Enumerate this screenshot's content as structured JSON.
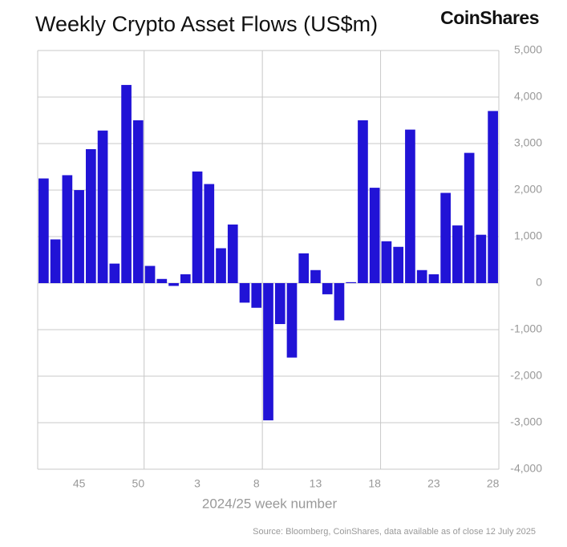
{
  "chart_data": {
    "type": "bar",
    "title": "Weekly Crypto Asset Flows (US$m)",
    "brand": "CoinShares",
    "x_label": "2024/25 week number",
    "source": "Source: Bloomberg, CoinShares, data available as of close 12 July 2025",
    "color": "#2113d6",
    "categories": [
      null,
      null,
      null,
      "45",
      null,
      null,
      null,
      null,
      "50",
      null,
      null,
      null,
      null,
      "3",
      null,
      null,
      null,
      null,
      "8",
      null,
      null,
      null,
      null,
      "13",
      null,
      null,
      null,
      null,
      "18",
      null,
      null,
      null,
      null,
      "23",
      null,
      null,
      null,
      null,
      "28"
    ],
    "values": [
      2250,
      940,
      2320,
      2000,
      2880,
      3280,
      420,
      4260,
      3500,
      370,
      90,
      -60,
      190,
      2400,
      2130,
      750,
      1260,
      -420,
      -530,
      -2950,
      -880,
      -1600,
      640,
      280,
      -240,
      -800,
      20,
      3500,
      2050,
      900,
      780,
      3300,
      280,
      190,
      1940,
      1240,
      2800,
      1040,
      3700
    ],
    "ylim": [
      -4000,
      5000
    ],
    "yticks": [
      {
        "value": -4000,
        "label": "-4,000"
      },
      {
        "value": -3000,
        "label": "-3,000"
      },
      {
        "value": -2000,
        "label": "-2,000"
      },
      {
        "value": -1000,
        "label": "-1,000"
      },
      0,
      {
        "value": 1000,
        "label": "1,000"
      },
      {
        "value": 2000,
        "label": "2,000"
      },
      {
        "value": 3000,
        "label": "3,000"
      },
      {
        "value": 4000,
        "label": "4,000"
      },
      {
        "value": 5000,
        "label": "5,000"
      }
    ],
    "grid": true
  }
}
